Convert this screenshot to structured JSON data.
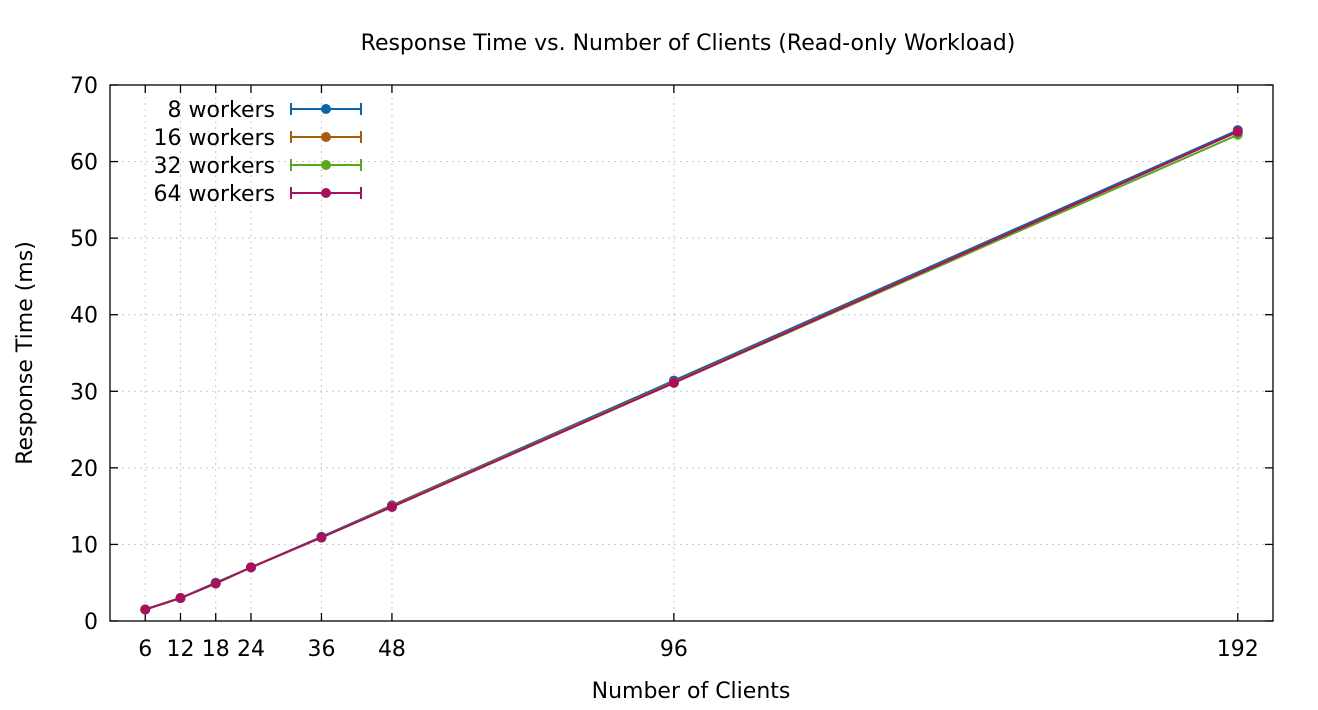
{
  "chart_data": {
    "type": "line",
    "title": "Response Time vs. Number of Clients (Read-only Workload)",
    "xlabel": "Number of Clients",
    "ylabel": "Response Time (ms)",
    "x": [
      6,
      12,
      18,
      24,
      36,
      48,
      96,
      192
    ],
    "x_tick_labels": [
      "6",
      "12",
      "18",
      "24",
      "36",
      "48",
      "96",
      "192"
    ],
    "xlim": [
      0,
      198
    ],
    "ylim": [
      0,
      70
    ],
    "y_ticks": [
      0,
      10,
      20,
      30,
      40,
      50,
      60,
      70
    ],
    "grid": true,
    "legend_position": "top-left",
    "series": [
      {
        "name": "8 workers",
        "color": "#0a64a5",
        "values": [
          1.5,
          3.0,
          5.0,
          7.0,
          11.0,
          15.1,
          31.4,
          64.1
        ]
      },
      {
        "name": "16 workers",
        "color": "#a85c10",
        "values": [
          1.5,
          3.0,
          4.9,
          7.0,
          10.9,
          15.0,
          31.2,
          63.9
        ]
      },
      {
        "name": "32 workers",
        "color": "#5aa81e",
        "values": [
          1.5,
          3.0,
          4.9,
          7.0,
          10.9,
          14.9,
          31.1,
          63.5
        ]
      },
      {
        "name": "64 workers",
        "color": "#a8105e",
        "values": [
          1.5,
          3.0,
          4.9,
          7.0,
          10.9,
          14.9,
          31.1,
          63.9
        ]
      }
    ]
  }
}
